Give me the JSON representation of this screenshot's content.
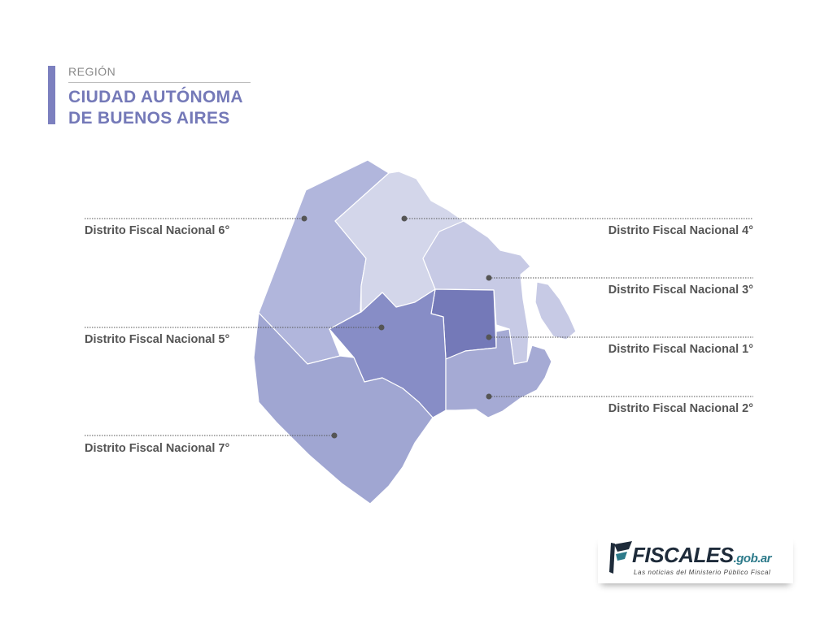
{
  "header": {
    "region_label": "REGIÓN",
    "title_line1": "CIUDAD AUTÓNOMA",
    "title_line2": "DE BUENOS AIRES"
  },
  "districts": {
    "d6": "Distrito Fiscal Nacional 6°",
    "d4": "Distrito Fiscal Nacional 4°",
    "d3": "Distrito Fiscal Nacional 3°",
    "d5": "Distrito Fiscal Nacional 5°",
    "d1": "Distrito Fiscal Nacional 1°",
    "d2": "Distrito Fiscal Nacional 2°",
    "d7": "Distrito Fiscal Nacional 7°"
  },
  "logo": {
    "name": "FISCALES",
    "domain": ".gob.ar",
    "tagline": "Las noticias del Ministerio Público Fiscal"
  },
  "colors": {
    "d1": "#7479b8",
    "d2": "#a5aad4",
    "d3": "#c7cae5",
    "d4": "#d3d6ea",
    "d5": "#878dc6",
    "d6": "#b1b6dc",
    "d7": "#a0a6d2",
    "accent": "#7c80bf"
  }
}
